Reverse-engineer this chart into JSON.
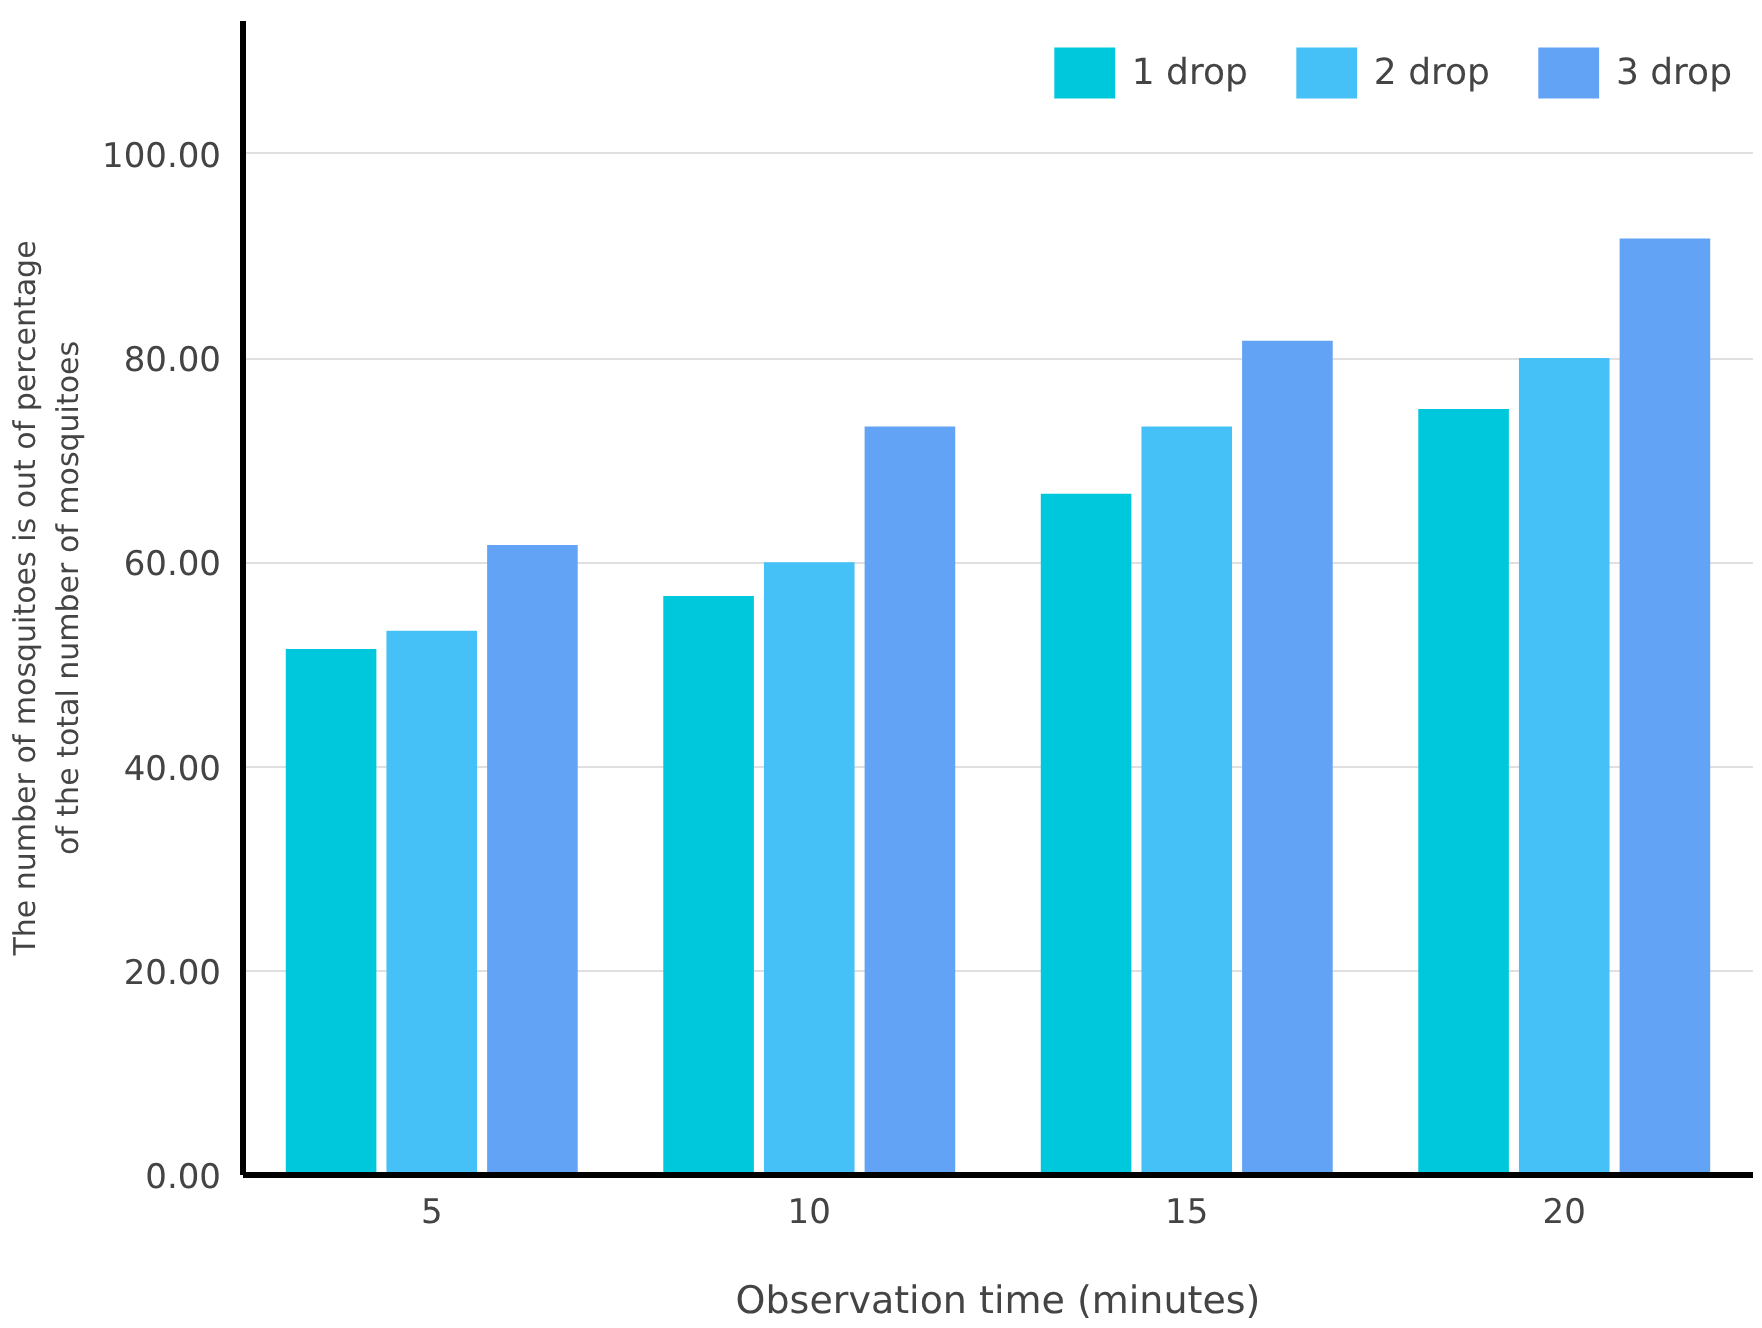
{
  "chart_data": {
    "type": "bar",
    "xlabel": "Observation time (minutes)",
    "ylabel": "The number of mosquitoes is out of percentage\nof the total number of mosquitoes",
    "categories": [
      "5",
      "10",
      "15",
      "20"
    ],
    "series": [
      {
        "name": "1 drop",
        "color": "#00c8dc",
        "values": [
          51.5,
          56.7,
          66.7,
          75.0
        ]
      },
      {
        "name": "2 drop",
        "color": "#45c1f8",
        "values": [
          53.3,
          60.0,
          73.3,
          80.0
        ]
      },
      {
        "name": "3 drop",
        "color": "#62a3f5",
        "values": [
          61.7,
          73.3,
          81.7,
          91.7
        ]
      }
    ],
    "ylim": [
      0,
      113
    ],
    "yticks": [
      {
        "value": 0,
        "label": "0.00"
      },
      {
        "value": 20,
        "label": "20.00"
      },
      {
        "value": 40,
        "label": "40.00"
      },
      {
        "value": 60,
        "label": "60.00"
      },
      {
        "value": 80,
        "label": "80.00"
      },
      {
        "value": 100,
        "label": "100.00"
      }
    ],
    "grid": "y",
    "legend": "top right"
  }
}
